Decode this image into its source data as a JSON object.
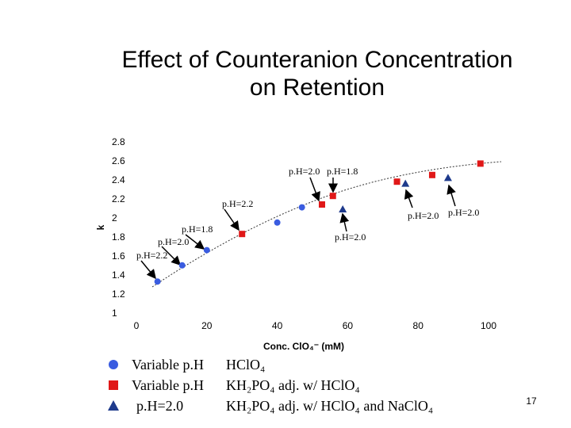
{
  "chart_data": {
    "type": "scatter",
    "title": [
      "Effect of Counteranion Concentration",
      "on Retention"
    ],
    "x_label": "Conc. ClO₄⁻ (mM)",
    "y_label": "k",
    "xlim": [
      0,
      100
    ],
    "xticks": [
      0,
      20,
      40,
      60,
      80,
      100
    ],
    "ylim": [
      1,
      2.8
    ],
    "yticks": [
      1,
      1.2,
      1.4,
      1.6,
      1.8,
      2,
      2.2,
      2.4,
      2.6,
      2.8
    ],
    "series": [
      {
        "name": "Variable p.H",
        "buffer": "HClO₄",
        "color": "#3a5ce0",
        "marker": "circle",
        "x": [
          6,
          13,
          20,
          40,
          47
        ],
        "values": [
          1.34,
          1.51,
          1.67,
          1.96,
          2.12
        ]
      },
      {
        "name": "Variable p.H",
        "buffer": "KH₂PO₄ adj. w/ HClO₄",
        "color": "#e01818",
        "marker": "square",
        "x": [
          30,
          52.7,
          55.8,
          74,
          84,
          97.7
        ],
        "values": [
          1.84,
          2.15,
          2.24,
          2.39,
          2.46,
          2.58
        ]
      },
      {
        "name": "p.H=2.0",
        "buffer": "KH₂PO₄ adj. w/ HClO₄ and NaClO₄",
        "color": "#1e3a8c",
        "marker": "triangle",
        "x": [
          58.6,
          76.4,
          88.5
        ],
        "values": [
          2.1,
          2.37,
          2.43
        ]
      }
    ],
    "annotations": [
      "p.H=2.0",
      "p.H=1.8",
      "p.H=2.2",
      "p.H=1.8",
      "p.H=2.0",
      "p.H=2.2",
      "p.H=2.0",
      "p.H=2.0",
      "p.H=2.0"
    ],
    "page_number": "17"
  }
}
